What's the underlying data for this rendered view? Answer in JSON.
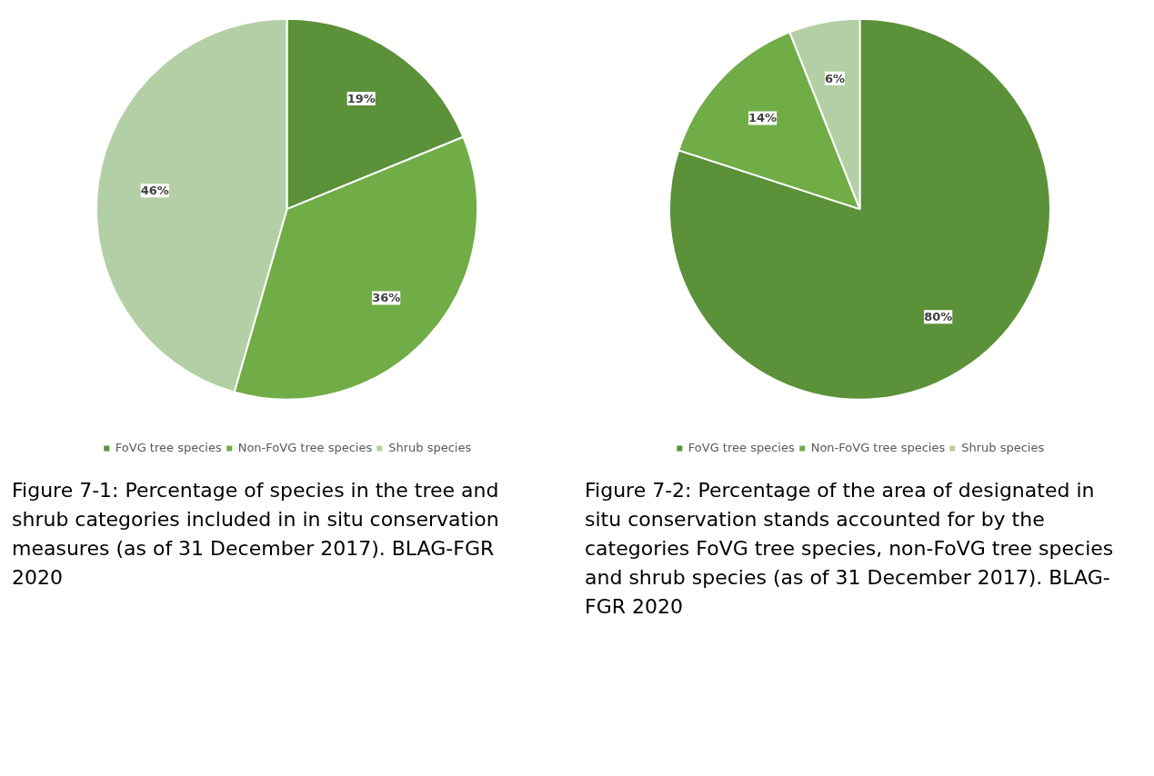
{
  "chart_data": [
    {
      "type": "pie",
      "title": "Figure 7-1: Percentage of species in the tree and shrub categories included in in situ conservation measures (as of 31 December 2017). BLAG-FGR 2020",
      "categories": [
        "FoVG tree species",
        "Non-FoVG tree species",
        "Shrub species"
      ],
      "values": [
        19,
        36,
        46
      ],
      "value_labels": [
        "19%",
        "36%",
        "46%"
      ],
      "colors": [
        "#5b9139",
        "#70ad47",
        "#b3cfa5"
      ],
      "legend": "bottom"
    },
    {
      "type": "pie",
      "title": "Figure 7-2: Percentage of the area of designated in situ conservation stands accounted for by the categories FoVG tree species, non-FoVG tree species and shrub species (as of 31 December 2017). BLAG-FGR 2020",
      "categories": [
        "FoVG tree species",
        "Non-FoVG tree species",
        "Shrub species"
      ],
      "values": [
        80,
        14,
        6
      ],
      "value_labels": [
        "80%",
        "14%",
        "6%"
      ],
      "colors": [
        "#5b9139",
        "#70ad47",
        "#b3cfa5"
      ],
      "legend": "bottom"
    }
  ]
}
